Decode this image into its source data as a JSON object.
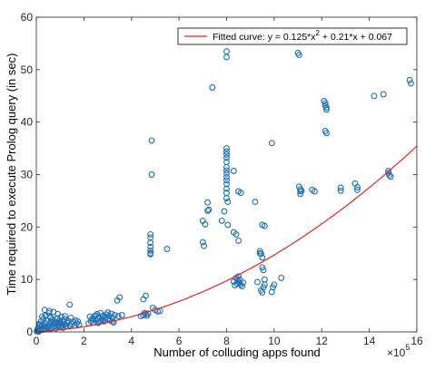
{
  "chart_data": {
    "type": "scatter",
    "xlabel": "Number of colluding apps found",
    "ylabel": "Time required to execute Prolog query (in sec)",
    "x_multiplier_label": "×10",
    "x_multiplier_exp": "5",
    "xlim": [
      0,
      1600000
    ],
    "ylim": [
      0,
      60
    ],
    "xticks": [
      0,
      200000,
      400000,
      600000,
      800000,
      1000000,
      1200000,
      1400000,
      1600000
    ],
    "xtick_labels": [
      "0",
      "2",
      "4",
      "6",
      "8",
      "10",
      "12",
      "14",
      "16"
    ],
    "yticks": [
      0,
      10,
      20,
      30,
      40,
      50,
      60
    ],
    "ytick_labels": [
      "0",
      "10",
      "20",
      "30",
      "40",
      "50",
      "60"
    ],
    "grid": false,
    "legend_position": "top-right",
    "legend": [
      {
        "label": "Fitted curve: y = 0.125*x",
        "sup": "2",
        "label_rest": " + 0.21*x + 0.067",
        "color": "#ee2222"
      }
    ],
    "marker_color": "#1f6fb4",
    "fit": {
      "a": 0.125,
      "b": 0.21,
      "c": 0.067,
      "x_scale": 100000,
      "color": "#ee2222"
    },
    "scatter_x_scale": 100000,
    "points": [
      [
        0.02,
        0.1
      ],
      [
        0.05,
        0.5
      ],
      [
        0.08,
        0.2
      ],
      [
        0.1,
        0.8
      ],
      [
        0.12,
        1.5
      ],
      [
        0.15,
        0.3
      ],
      [
        0.18,
        1.0
      ],
      [
        0.2,
        2.0
      ],
      [
        0.22,
        0.6
      ],
      [
        0.25,
        1.3
      ],
      [
        0.28,
        0.4
      ],
      [
        0.3,
        2.5
      ],
      [
        0.32,
        1.1
      ],
      [
        0.35,
        0.7
      ],
      [
        0.38,
        3.1
      ],
      [
        0.4,
        1.6
      ],
      [
        0.42,
        0.5
      ],
      [
        0.45,
        2.2
      ],
      [
        0.48,
        1.0
      ],
      [
        0.5,
        0.8
      ],
      [
        0.52,
        3.6
      ],
      [
        0.55,
        1.4
      ],
      [
        0.58,
        2.8
      ],
      [
        0.6,
        0.6
      ],
      [
        0.62,
        1.9
      ],
      [
        0.65,
        1.2
      ],
      [
        0.68,
        2.4
      ],
      [
        0.7,
        0.9
      ],
      [
        0.72,
        3.8
      ],
      [
        0.75,
        1.7
      ],
      [
        0.78,
        1.1
      ],
      [
        0.8,
        2.0
      ],
      [
        0.82,
        0.7
      ],
      [
        0.85,
        1.5
      ],
      [
        0.88,
        2.6
      ],
      [
        0.9,
        1.0
      ],
      [
        0.92,
        1.8
      ],
      [
        0.95,
        1.3
      ],
      [
        0.98,
        2.2
      ],
      [
        1.0,
        0.9
      ],
      [
        1.02,
        1.6
      ],
      [
        1.05,
        2.9
      ],
      [
        1.08,
        1.2
      ],
      [
        1.1,
        2.0
      ],
      [
        1.12,
        0.8
      ],
      [
        1.15,
        1.9
      ],
      [
        1.18,
        1.4
      ],
      [
        1.2,
        2.4
      ],
      [
        1.25,
        1.1
      ],
      [
        1.3,
        1.7
      ],
      [
        1.35,
        2.1
      ],
      [
        1.4,
        1.3
      ],
      [
        1.45,
        2.7
      ],
      [
        1.5,
        1.5
      ],
      [
        1.55,
        1.9
      ],
      [
        1.6,
        1.2
      ],
      [
        1.65,
        2.2
      ],
      [
        1.7,
        1.6
      ],
      [
        1.75,
        2.0
      ],
      [
        1.8,
        1.4
      ],
      [
        0.35,
        4.2
      ],
      [
        0.55,
        4.0
      ],
      [
        0.9,
        3.4
      ],
      [
        1.4,
        5.2
      ],
      [
        0.25,
        2.9
      ],
      [
        0.6,
        2.7
      ],
      [
        1.2,
        3.0
      ],
      [
        0.05,
        0.2
      ],
      [
        0.1,
        0.05
      ],
      [
        0.15,
        1.4
      ],
      [
        2.2,
        1.6
      ],
      [
        2.3,
        2.0
      ],
      [
        2.35,
        2.5
      ],
      [
        2.4,
        1.8
      ],
      [
        2.45,
        3.0
      ],
      [
        2.5,
        2.2
      ],
      [
        2.55,
        3.4
      ],
      [
        2.6,
        2.6
      ],
      [
        2.65,
        1.9
      ],
      [
        2.7,
        3.6
      ],
      [
        2.75,
        2.4
      ],
      [
        2.8,
        3.1
      ],
      [
        2.85,
        2.0
      ],
      [
        2.9,
        2.8
      ],
      [
        2.95,
        3.3
      ],
      [
        3.0,
        2.5
      ],
      [
        3.05,
        3.0
      ],
      [
        3.1,
        2.2
      ],
      [
        3.15,
        3.5
      ],
      [
        3.2,
        2.7
      ],
      [
        3.25,
        1.8
      ],
      [
        3.3,
        3.2
      ],
      [
        2.25,
        2.9
      ],
      [
        2.5,
        3.1
      ],
      [
        2.6,
        1.7
      ],
      [
        2.8,
        2.3
      ],
      [
        3.0,
        3.7
      ],
      [
        3.2,
        2.0
      ],
      [
        2.4,
        2.4
      ],
      [
        2.7,
        2.1
      ],
      [
        3.4,
        6.0
      ],
      [
        3.5,
        6.6
      ],
      [
        3.6,
        3.2
      ],
      [
        3.45,
        3.0
      ],
      [
        4.4,
        3.0
      ],
      [
        4.5,
        3.2
      ],
      [
        4.6,
        3.4
      ],
      [
        4.65,
        3.1
      ],
      [
        4.7,
        3.5
      ],
      [
        4.55,
        3.6
      ],
      [
        4.5,
        6.2
      ],
      [
        4.6,
        6.9
      ],
      [
        4.9,
        4.6
      ],
      [
        5.0,
        4.2
      ],
      [
        5.1,
        3.9
      ],
      [
        5.2,
        4.0
      ],
      [
        4.85,
        36.5
      ],
      [
        4.85,
        30.0
      ],
      [
        4.8,
        18.0
      ],
      [
        4.8,
        18.6
      ],
      [
        4.8,
        15.5
      ],
      [
        4.8,
        15.0
      ],
      [
        4.8,
        16.2
      ],
      [
        4.8,
        17.0
      ],
      [
        4.8,
        14.8
      ],
      [
        5.5,
        15.8
      ],
      [
        7.0,
        21.2
      ],
      [
        7.1,
        20.5
      ],
      [
        7.0,
        17.1
      ],
      [
        7.05,
        16.4
      ],
      [
        7.2,
        24.7
      ],
      [
        7.2,
        23.1
      ],
      [
        7.25,
        23.3
      ],
      [
        7.4,
        46.6
      ],
      [
        7.8,
        21.2
      ],
      [
        7.9,
        23.0
      ],
      [
        8.0,
        53.5
      ],
      [
        8.0,
        52.4
      ],
      [
        8.0,
        35.0
      ],
      [
        8.0,
        34.4
      ],
      [
        8.0,
        33.8
      ],
      [
        8.0,
        33.2
      ],
      [
        8.0,
        32.4
      ],
      [
        8.0,
        31.4
      ],
      [
        8.0,
        30.8
      ],
      [
        8.0,
        30.2
      ],
      [
        8.0,
        29.5
      ],
      [
        8.0,
        28.9
      ],
      [
        8.0,
        28.2
      ],
      [
        8.0,
        27.3
      ],
      [
        8.0,
        26.5
      ],
      [
        8.0,
        25.5
      ],
      [
        8.05,
        24.8
      ],
      [
        8.05,
        20.4
      ],
      [
        8.3,
        30.7
      ],
      [
        8.3,
        19.0
      ],
      [
        8.4,
        18.6
      ],
      [
        8.5,
        17.4
      ],
      [
        8.5,
        26.8
      ],
      [
        8.6,
        26.5
      ],
      [
        8.4,
        10.3
      ],
      [
        8.45,
        9.9
      ],
      [
        8.5,
        9.6
      ],
      [
        8.55,
        9.3
      ],
      [
        8.6,
        9.0
      ],
      [
        8.65,
        8.7
      ],
      [
        8.7,
        9.4
      ],
      [
        8.5,
        10.6
      ],
      [
        8.45,
        9.2
      ],
      [
        8.55,
        10.0
      ],
      [
        8.3,
        9.6
      ],
      [
        8.35,
        8.9
      ],
      [
        9.2,
        24.8
      ],
      [
        9.3,
        9.5
      ],
      [
        9.4,
        15.4
      ],
      [
        9.45,
        14.9
      ],
      [
        9.5,
        14.2
      ],
      [
        9.4,
        15.0
      ],
      [
        9.5,
        20.4
      ],
      [
        9.6,
        20.2
      ],
      [
        9.5,
        12.3
      ],
      [
        9.55,
        11.8
      ],
      [
        9.6,
        10.0
      ],
      [
        9.6,
        9.0
      ],
      [
        9.55,
        8.5
      ],
      [
        9.45,
        7.9
      ],
      [
        9.5,
        7.5
      ],
      [
        9.9,
        7.6
      ],
      [
        10.0,
        9.0
      ],
      [
        9.95,
        8.5
      ],
      [
        9.9,
        36.0
      ],
      [
        10.3,
        10.3
      ],
      [
        11.0,
        53.2
      ],
      [
        11.05,
        52.8
      ],
      [
        11.05,
        27.7
      ],
      [
        11.1,
        27.2
      ],
      [
        11.1,
        26.8
      ],
      [
        11.1,
        26.3
      ],
      [
        11.15,
        26.9
      ],
      [
        11.6,
        27.1
      ],
      [
        11.7,
        26.8
      ],
      [
        12.1,
        44.0
      ],
      [
        12.15,
        43.6
      ],
      [
        12.15,
        43.2
      ],
      [
        12.2,
        42.8
      ],
      [
        12.2,
        42.4
      ],
      [
        12.15,
        38.3
      ],
      [
        12.2,
        37.9
      ],
      [
        12.8,
        27.5
      ],
      [
        12.8,
        26.9
      ],
      [
        13.4,
        28.3
      ],
      [
        13.5,
        27.6
      ],
      [
        13.5,
        27.1
      ],
      [
        14.2,
        45.0
      ],
      [
        14.6,
        45.3
      ],
      [
        14.8,
        30.7
      ],
      [
        14.8,
        30.3
      ],
      [
        14.85,
        29.9
      ],
      [
        14.9,
        29.6
      ],
      [
        15.7,
        48.0
      ],
      [
        15.75,
        47.4
      ]
    ]
  }
}
